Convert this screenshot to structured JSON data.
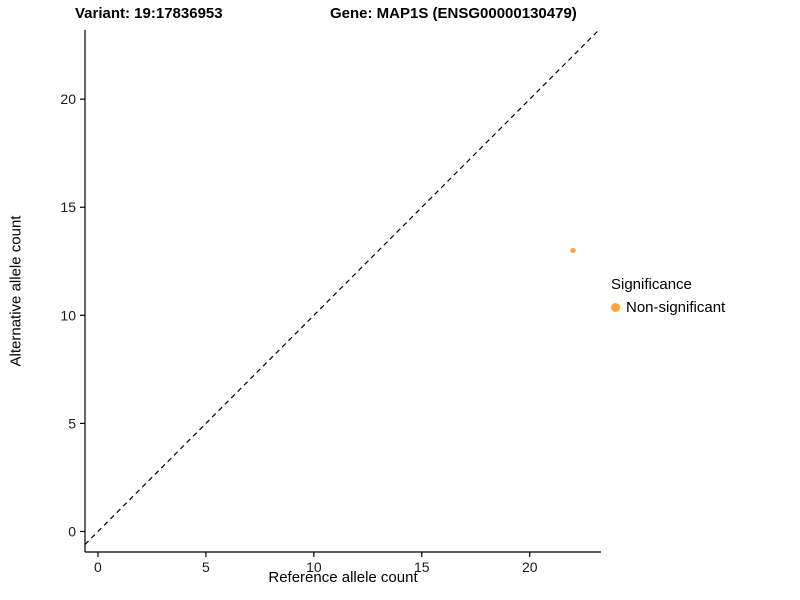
{
  "title": {
    "variant": "Variant: 19:17836953",
    "gene": "Gene: MAP1S (ENSG00000130479)"
  },
  "axes": {
    "x_label": "Reference allele count",
    "y_label": "Alternative allele count"
  },
  "legend": {
    "title": "Significance",
    "items": [
      {
        "label": "Non-significant",
        "color": "#FFA33A"
      }
    ]
  },
  "colors": {
    "point": "#FFA33A",
    "axis_line": "#000000",
    "tick_text": "#1a1a1a",
    "identity_line": "#000000",
    "background": "#ffffff"
  },
  "chart_data": {
    "type": "scatter",
    "title": "Variant: 19:17836953   Gene: MAP1S (ENSG00000130479)",
    "xlabel": "Reference allele count",
    "ylabel": "Alternative allele count",
    "xlim": [
      -0.6,
      23.3
    ],
    "ylim": [
      -0.95,
      23.2
    ],
    "x_ticks": [
      0,
      5,
      10,
      15,
      20
    ],
    "y_ticks": [
      0,
      5,
      10,
      15,
      20
    ],
    "grid": false,
    "legend_position": "right",
    "series": [
      {
        "name": "Non-significant",
        "color": "#FFA33A",
        "points": [
          {
            "x": 22,
            "y": 13
          }
        ]
      }
    ],
    "reference_line": {
      "type": "identity",
      "slope": 1,
      "intercept": 0,
      "style": "dashed",
      "color": "#000000"
    }
  }
}
